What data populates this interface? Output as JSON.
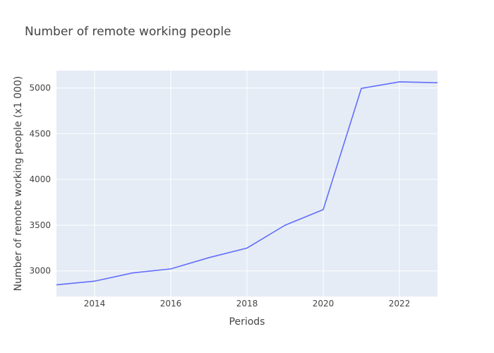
{
  "chart_data": {
    "type": "line",
    "title": "Number of remote working people",
    "xlabel": "Periods",
    "ylabel": "Number of remote working people (x1 000)",
    "xlim": [
      2013,
      2023
    ],
    "ylim": [
      2720,
      5190
    ],
    "xticks": [
      2014,
      2016,
      2018,
      2020,
      2022
    ],
    "yticks": [
      3000,
      3500,
      4000,
      4500,
      5000
    ],
    "grid": true,
    "legend": "none",
    "colors": {
      "plot_bg": "#e5ecf6",
      "grid": "#ffffff",
      "line": "#636efa"
    },
    "series": [
      {
        "x": [
          2013,
          2014,
          2015,
          2016,
          2017,
          2018,
          2019,
          2020,
          2021,
          2022,
          2023
        ],
        "values": [
          2848,
          2888,
          2978,
          3022,
          3145,
          3250,
          3500,
          3670,
          4995,
          5067,
          5057
        ]
      }
    ]
  }
}
